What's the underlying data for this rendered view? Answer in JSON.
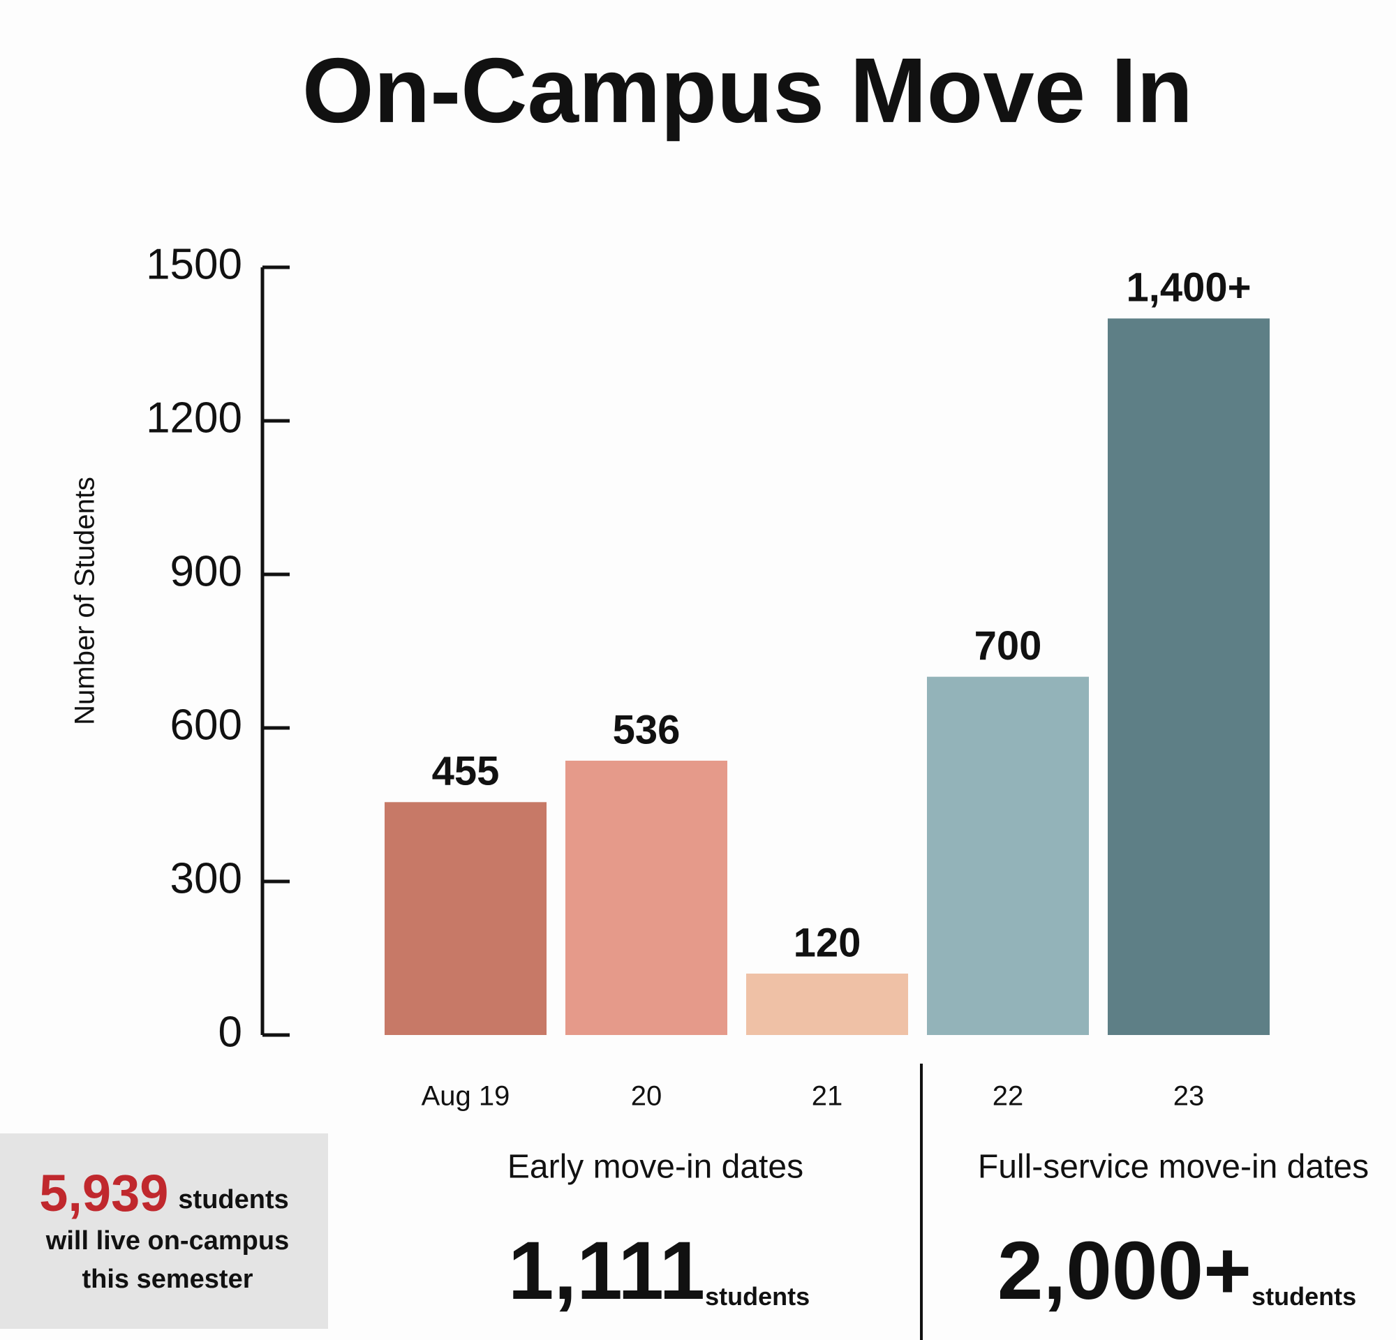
{
  "chart_data": {
    "type": "bar",
    "title": "On-Campus Move In",
    "y_label": "Number of Students",
    "categories": [
      "Aug 19",
      "20",
      "21",
      "22",
      "23"
    ],
    "values": [
      455,
      536,
      120,
      700,
      1400
    ],
    "value_labels": [
      "455",
      "536",
      "120",
      "700",
      "1,400+"
    ],
    "colors": [
      "#c77967",
      "#e59a8a",
      "#efc1a6",
      "#93b3b9",
      "#5e7f86"
    ],
    "ylim": [
      0,
      1500
    ],
    "yticks": [
      0,
      300,
      600,
      900,
      1200,
      1500
    ],
    "groups": [
      {
        "label": "Early move-in dates",
        "total": "1,111",
        "unit": "students"
      },
      {
        "label": "Full-service move-in dates",
        "total": "2,000+",
        "unit": "students"
      }
    ],
    "callout": {
      "number": "5,939",
      "unit": "students",
      "lines": [
        "will live on-campus",
        "this semester"
      ]
    }
  }
}
